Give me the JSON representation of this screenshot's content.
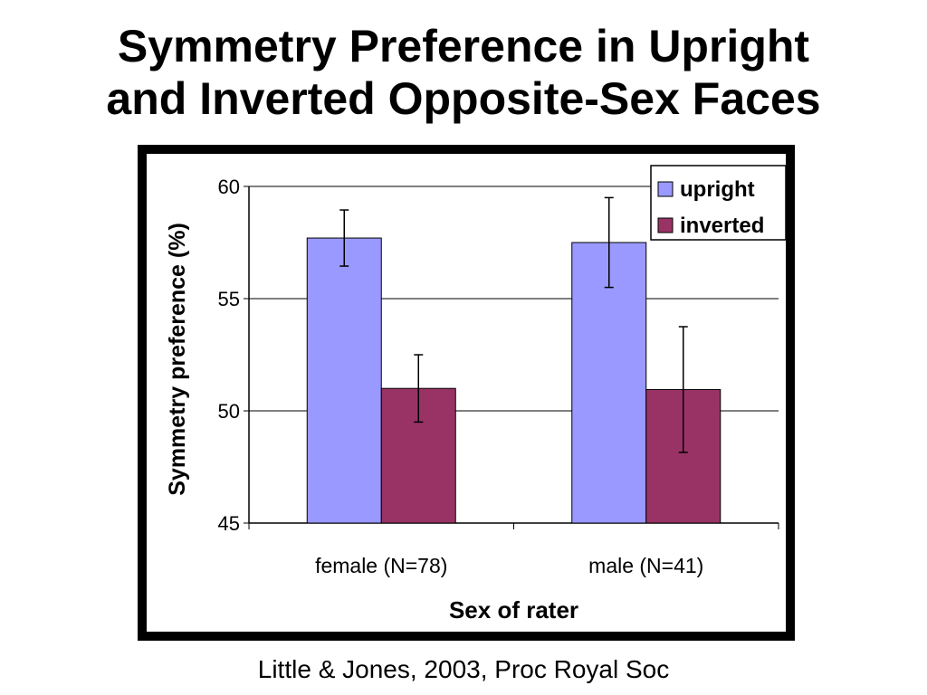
{
  "slide": {
    "title_line1": "Symmetry Preference in Upright",
    "title_line2": "and Inverted Opposite-Sex Faces",
    "citation": "Little & Jones, 2003, Proc Royal Soc"
  },
  "chart_data": {
    "type": "bar",
    "title": "",
    "xlabel": "Sex of rater",
    "ylabel": "Symmetry preference (%)",
    "ylim": [
      45,
      60
    ],
    "yticks": [
      45,
      50,
      55,
      60
    ],
    "grid": true,
    "legend_position": "top-right",
    "categories": [
      "female (N=78)",
      "male (N=41)"
    ],
    "series": [
      {
        "name": "upright",
        "color": "#9999ff",
        "values": [
          57.7,
          57.5
        ],
        "error": [
          1.25,
          2.0
        ]
      },
      {
        "name": "inverted",
        "color": "#993366",
        "values": [
          51.0,
          50.95
        ],
        "error": [
          1.5,
          2.8
        ]
      }
    ]
  }
}
